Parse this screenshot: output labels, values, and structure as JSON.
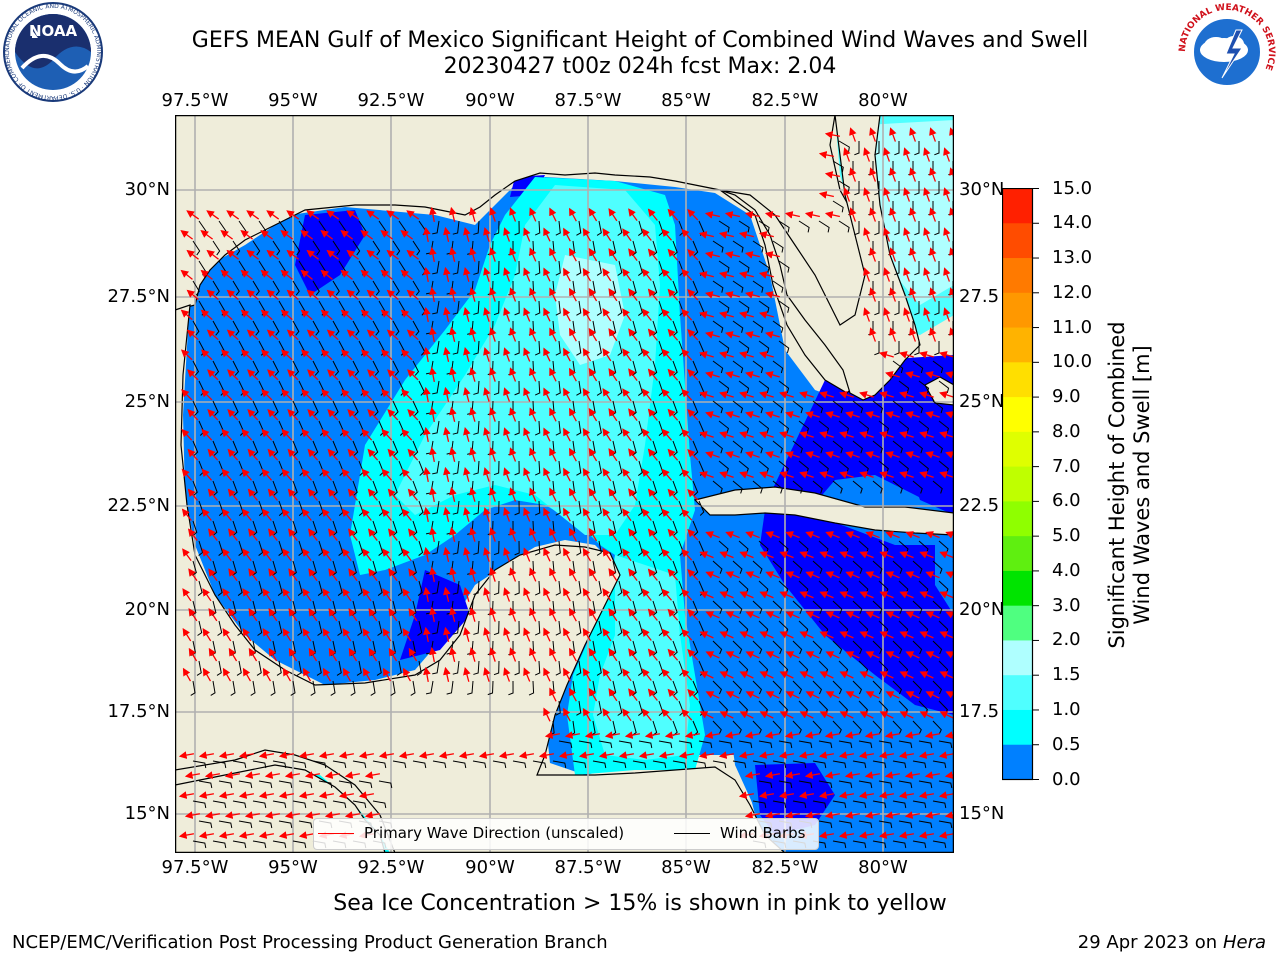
{
  "header": {
    "title_line1": "GEFS MEAN Gulf of Mexico Significant Height of Combined Wind Waves and Swell",
    "title_line2": "20230427 t00z 024h fcst   Max: 2.04"
  },
  "logos": {
    "left": {
      "text": "NOAA",
      "ring_text": "NATIONAL OCEANIC AND ATMOSPHERIC ADMINISTRATION · U.S. DEPARTMENT OF COMMERCE"
    },
    "right": {
      "ring_text": "NATIONAL WEATHER SERVICE"
    }
  },
  "map": {
    "lon_labels": [
      "97.5°W",
      "95°W",
      "92.5°W",
      "90°W",
      "87.5°W",
      "85°W",
      "82.5°W",
      "80°W"
    ],
    "lat_labels": [
      "30°N",
      "27.5°N",
      "25°N",
      "22.5°N",
      "20°N",
      "17.5°N",
      "15°N"
    ],
    "lat_labels_right": [
      "30°N",
      "27.5",
      "25°N",
      "22.5",
      "20°N",
      "17.5",
      "15°N"
    ],
    "lon_range": [
      -98,
      -78.2
    ],
    "lat_range": [
      14,
      31.8
    ],
    "colors": {
      "land": "#efedda",
      "grid": "#b0b0b0",
      "coast": "#000000",
      "wave_arrow": "#ff0000",
      "wind_barb": "#000000"
    }
  },
  "legend": {
    "wave_label": "Primary Wave Direction (unscaled)",
    "wind_label": "Wind Barbs"
  },
  "colorbar": {
    "label_line1": "Significant Height of Combined",
    "label_line2": "Wind Waves and Swell [m]",
    "ticks": [
      "15.0",
      "14.0",
      "13.0",
      "12.0",
      "11.0",
      "10.0",
      "9.0",
      "8.0",
      "7.0",
      "6.0",
      "5.0",
      "4.0",
      "3.0",
      "2.0",
      "1.5",
      "1.0",
      "0.5",
      "0.0"
    ],
    "colors": [
      "#ff0000",
      "#ff2000",
      "#ff4c00",
      "#ff7a00",
      "#ff9800",
      "#ffb300",
      "#ffdf00",
      "#ffff00",
      "#dfff00",
      "#bfff00",
      "#8fff00",
      "#5fef10",
      "#00e400",
      "#4fff80",
      "#afffff",
      "#4fffff",
      "#00ffff",
      "#0080ff",
      "#0000ff"
    ]
  },
  "footer": {
    "ice_note": "Sea Ice Concentration > 15% is shown in pink to yellow",
    "left": "NCEP/EMC/Verification Post Processing Product Generation Branch",
    "right_date": "29 Apr 2023 on ",
    "right_host": "Hera"
  }
}
